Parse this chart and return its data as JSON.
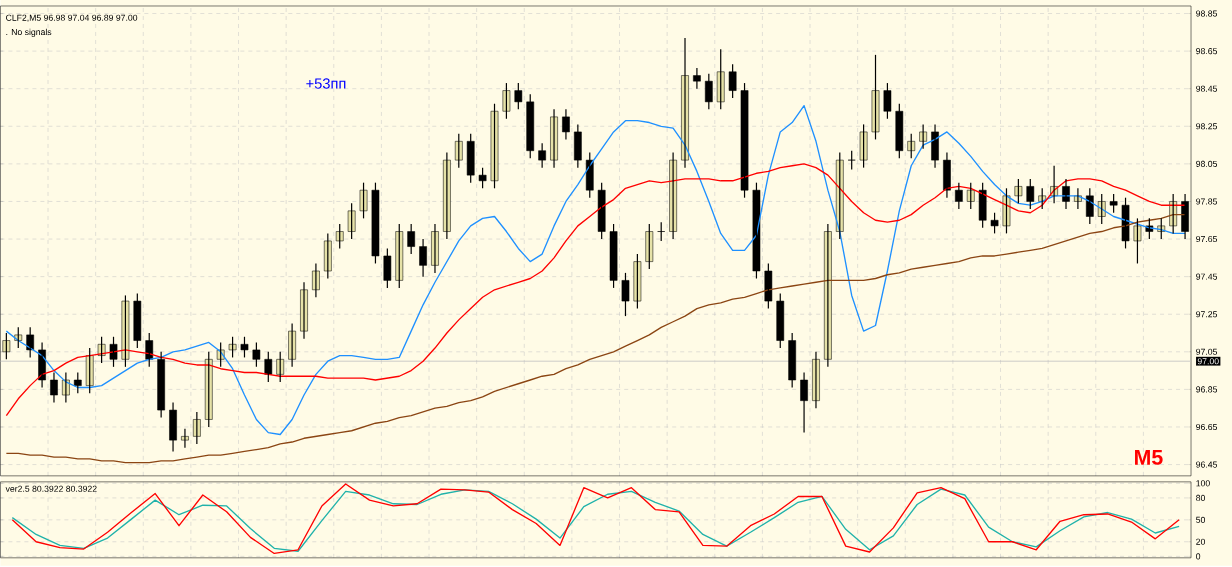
{
  "chart_data": [
    {
      "type": "candlestick",
      "annotations": [
        "CLF2,M5  96.98 97.04 96.89 97.00",
        ". No signals",
        "+53пп",
        "M5"
      ],
      "categories": [
        null,
        null,
        null,
        null,
        null,
        null,
        null,
        null,
        null,
        null,
        null,
        null,
        null,
        null,
        null,
        null,
        null,
        null,
        null,
        null,
        null,
        null,
        null,
        null,
        null,
        null,
        null,
        null,
        null,
        null,
        null,
        null,
        null,
        null,
        null,
        null,
        null,
        null,
        null,
        null,
        null,
        null,
        null,
        null,
        null,
        null,
        null,
        null,
        null,
        null,
        null,
        null,
        null,
        null,
        null,
        null,
        null,
        null,
        null,
        null,
        null,
        null,
        null,
        null,
        null,
        null,
        null,
        null,
        null,
        null,
        null,
        null,
        null,
        null,
        null,
        null,
        null,
        null,
        null,
        null,
        null,
        null,
        null,
        null,
        null,
        null,
        null,
        null,
        null,
        null,
        null,
        null,
        null,
        null,
        null,
        null,
        null,
        null,
        null,
        null
      ],
      "ohlc": [
        [
          97.05,
          97.15,
          97.01,
          97.11
        ],
        [
          97.11,
          97.18,
          97.07,
          97.14
        ],
        [
          97.14,
          97.18,
          97.02,
          97.06
        ],
        [
          97.06,
          97.1,
          96.86,
          96.9
        ],
        [
          96.9,
          96.94,
          96.78,
          96.82
        ],
        [
          96.82,
          96.94,
          96.78,
          96.9
        ],
        [
          96.9,
          96.94,
          96.83,
          96.87
        ],
        [
          96.87,
          97.07,
          96.83,
          97.03
        ],
        [
          97.03,
          97.13,
          96.99,
          97.09
        ],
        [
          97.09,
          97.13,
          96.97,
          97.01
        ],
        [
          97.01,
          97.35,
          96.97,
          97.32
        ],
        [
          97.32,
          97.36,
          97.07,
          97.11
        ],
        [
          97.11,
          97.15,
          96.97,
          97.01
        ],
        [
          97.01,
          97.05,
          96.7,
          96.74
        ],
        [
          96.74,
          96.78,
          96.52,
          96.58
        ],
        [
          96.58,
          96.64,
          96.54,
          96.6
        ],
        [
          96.6,
          96.73,
          96.56,
          96.69
        ],
        [
          96.69,
          97.05,
          96.65,
          97.01
        ],
        [
          97.01,
          97.1,
          96.97,
          97.06
        ],
        [
          97.06,
          97.13,
          97.02,
          97.09
        ],
        [
          97.09,
          97.13,
          97.02,
          97.06
        ],
        [
          97.06,
          97.1,
          96.97,
          97.01
        ],
        [
          97.01,
          97.05,
          96.89,
          96.93
        ],
        [
          96.93,
          97.05,
          96.89,
          97.01
        ],
        [
          97.01,
          97.2,
          96.97,
          97.16
        ],
        [
          97.16,
          97.42,
          97.12,
          97.38
        ],
        [
          97.38,
          97.52,
          97.34,
          97.48
        ],
        [
          97.48,
          97.68,
          97.44,
          97.64
        ],
        [
          97.64,
          97.73,
          97.6,
          97.69
        ],
        [
          97.69,
          97.84,
          97.65,
          97.8
        ],
        [
          97.8,
          97.95,
          97.76,
          97.91
        ],
        [
          97.91,
          97.95,
          97.52,
          97.56
        ],
        [
          97.56,
          97.6,
          97.39,
          97.43
        ],
        [
          97.43,
          97.73,
          97.39,
          97.69
        ],
        [
          97.69,
          97.73,
          97.57,
          97.61
        ],
        [
          97.61,
          97.65,
          97.45,
          97.51
        ],
        [
          97.51,
          97.73,
          97.47,
          97.69
        ],
        [
          97.69,
          98.11,
          97.65,
          98.07
        ],
        [
          98.07,
          98.21,
          98.03,
          98.17
        ],
        [
          98.17,
          98.21,
          97.95,
          97.99
        ],
        [
          97.99,
          98.03,
          97.92,
          97.96
        ],
        [
          97.96,
          98.37,
          97.92,
          98.33
        ],
        [
          98.33,
          98.48,
          98.29,
          98.44
        ],
        [
          98.44,
          98.48,
          98.34,
          98.38
        ],
        [
          98.38,
          98.42,
          98.08,
          98.12
        ],
        [
          98.12,
          98.16,
          98.03,
          98.07
        ],
        [
          98.07,
          98.34,
          98.03,
          98.3
        ],
        [
          98.3,
          98.34,
          98.18,
          98.22
        ],
        [
          98.22,
          98.26,
          98.03,
          98.07
        ],
        [
          98.07,
          98.11,
          97.87,
          97.91
        ],
        [
          97.91,
          97.95,
          97.65,
          97.69
        ],
        [
          97.69,
          97.73,
          97.39,
          97.43
        ],
        [
          97.43,
          97.47,
          97.24,
          97.32
        ],
        [
          97.32,
          97.57,
          97.28,
          97.53
        ],
        [
          97.53,
          97.73,
          97.49,
          97.69
        ],
        [
          97.69,
          97.74,
          97.64,
          97.69
        ],
        [
          97.69,
          98.11,
          97.65,
          98.07
        ],
        [
          98.07,
          98.72,
          98.03,
          98.52
        ],
        [
          98.52,
          98.56,
          98.45,
          98.49
        ],
        [
          98.49,
          98.53,
          98.34,
          98.38
        ],
        [
          98.38,
          98.66,
          98.34,
          98.54
        ],
        [
          98.54,
          98.58,
          98.4,
          98.44
        ],
        [
          98.44,
          98.48,
          97.87,
          97.91
        ],
        [
          97.91,
          97.95,
          97.44,
          97.48
        ],
        [
          97.48,
          97.52,
          97.28,
          97.32
        ],
        [
          97.32,
          97.36,
          97.07,
          97.11
        ],
        [
          97.11,
          97.15,
          96.86,
          96.9
        ],
        [
          96.9,
          96.94,
          96.62,
          96.79
        ],
        [
          96.79,
          97.05,
          96.75,
          97.01
        ],
        [
          97.01,
          97.73,
          96.97,
          97.69
        ],
        [
          97.69,
          98.11,
          97.65,
          98.07
        ],
        [
          98.07,
          98.12,
          98.02,
          98.07
        ],
        [
          98.07,
          98.26,
          98.03,
          98.22
        ],
        [
          98.22,
          98.63,
          98.18,
          98.44
        ],
        [
          98.44,
          98.48,
          98.29,
          98.33
        ],
        [
          98.33,
          98.37,
          98.08,
          98.12
        ],
        [
          98.12,
          98.21,
          98.08,
          98.17
        ],
        [
          98.17,
          98.26,
          98.13,
          98.22
        ],
        [
          98.22,
          98.26,
          98.03,
          98.07
        ],
        [
          98.07,
          98.11,
          97.87,
          97.91
        ],
        [
          97.91,
          97.95,
          97.81,
          97.85
        ],
        [
          97.85,
          97.95,
          97.81,
          97.91
        ],
        [
          97.91,
          97.95,
          97.71,
          97.75
        ],
        [
          97.75,
          97.79,
          97.68,
          97.72
        ],
        [
          97.72,
          97.92,
          97.68,
          97.88
        ],
        [
          97.88,
          97.97,
          97.84,
          97.93
        ],
        [
          97.93,
          97.97,
          97.81,
          97.85
        ],
        [
          97.85,
          97.92,
          97.81,
          97.88
        ],
        [
          97.88,
          98.04,
          97.84,
          97.93
        ],
        [
          97.93,
          97.97,
          97.81,
          97.85
        ],
        [
          97.85,
          97.92,
          97.81,
          97.88
        ],
        [
          97.88,
          97.92,
          97.73,
          97.77
        ],
        [
          97.77,
          97.89,
          97.73,
          97.85
        ],
        [
          97.85,
          97.89,
          97.79,
          97.83
        ],
        [
          97.83,
          97.87,
          97.6,
          97.64
        ],
        [
          97.64,
          97.76,
          97.52,
          97.72
        ],
        [
          97.72,
          97.76,
          97.65,
          97.69
        ],
        [
          97.69,
          97.76,
          97.65,
          97.72
        ],
        [
          97.72,
          97.89,
          97.68,
          97.85
        ],
        [
          97.85,
          97.89,
          97.65,
          97.69
        ]
      ],
      "series": [
        {
          "type": "line",
          "color": "#1e90ff",
          "values": [
            97.16,
            97.11,
            97.07,
            97.03,
            96.95,
            96.89,
            96.86,
            96.86,
            96.87,
            96.91,
            96.95,
            96.99,
            97.01,
            97.02,
            97.05,
            97.06,
            97.08,
            97.1,
            97.05,
            96.96,
            96.82,
            96.69,
            96.62,
            96.61,
            96.69,
            96.82,
            96.93,
            97.0,
            97.03,
            97.03,
            97.02,
            97.01,
            97.01,
            97.02,
            97.16,
            97.3,
            97.42,
            97.53,
            97.64,
            97.72,
            97.76,
            97.77,
            97.69,
            97.6,
            97.53,
            97.57,
            97.72,
            97.85,
            97.94,
            98.04,
            98.13,
            98.22,
            98.28,
            98.28,
            98.27,
            98.25,
            98.24,
            98.15,
            98.01,
            97.85,
            97.68,
            97.59,
            97.59,
            97.67,
            97.99,
            98.22,
            98.27,
            98.36,
            98.17,
            97.91,
            97.69,
            97.35,
            97.16,
            97.19,
            97.48,
            97.8,
            98.04,
            98.15,
            98.18,
            98.22,
            98.16,
            98.09,
            98.01,
            97.94,
            97.88,
            97.84,
            97.83,
            97.85,
            97.88,
            97.88,
            97.88,
            97.85,
            97.81,
            97.77,
            97.75,
            97.73,
            97.71,
            97.7,
            97.68,
            97.68
          ]
        },
        {
          "type": "line",
          "color": "#ff0000",
          "values": [
            96.71,
            96.8,
            96.87,
            96.93,
            96.95,
            96.99,
            97.02,
            97.03,
            97.04,
            97.05,
            97.06,
            97.05,
            97.04,
            97.02,
            97.01,
            96.99,
            96.98,
            96.98,
            96.96,
            96.95,
            96.94,
            96.94,
            96.93,
            96.92,
            96.92,
            96.92,
            96.92,
            96.91,
            96.91,
            96.91,
            96.91,
            96.9,
            96.91,
            96.92,
            96.95,
            97.0,
            97.07,
            97.15,
            97.22,
            97.28,
            97.34,
            97.38,
            97.4,
            97.42,
            97.44,
            97.48,
            97.55,
            97.64,
            97.72,
            97.77,
            97.82,
            97.86,
            97.92,
            97.94,
            97.96,
            97.95,
            97.96,
            97.97,
            97.97,
            97.97,
            97.96,
            97.96,
            97.98,
            98.0,
            98.01,
            98.03,
            98.04,
            98.05,
            98.03,
            97.99,
            97.92,
            97.85,
            97.79,
            97.75,
            97.74,
            97.75,
            97.78,
            97.83,
            97.87,
            97.92,
            97.93,
            97.92,
            97.89,
            97.86,
            97.83,
            97.8,
            97.79,
            97.83,
            97.91,
            97.96,
            97.97,
            97.97,
            97.96,
            97.93,
            97.91,
            97.88,
            97.85,
            97.83,
            97.83,
            97.83
          ]
        },
        {
          "type": "line",
          "color": "#8b4513",
          "values": [
            96.51,
            96.51,
            96.5,
            96.5,
            96.49,
            96.49,
            96.48,
            96.48,
            96.47,
            96.47,
            96.46,
            96.46,
            96.46,
            96.47,
            96.47,
            96.48,
            96.49,
            96.5,
            96.5,
            96.51,
            96.52,
            96.53,
            96.54,
            96.56,
            96.57,
            96.59,
            96.6,
            96.61,
            96.62,
            96.63,
            96.65,
            96.67,
            96.68,
            96.7,
            96.71,
            96.73,
            96.75,
            96.76,
            96.78,
            96.79,
            96.81,
            96.84,
            96.86,
            96.88,
            96.9,
            96.92,
            96.93,
            96.96,
            96.98,
            97.01,
            97.03,
            97.05,
            97.08,
            97.11,
            97.14,
            97.18,
            97.21,
            97.24,
            97.28,
            97.3,
            97.31,
            97.33,
            97.34,
            97.36,
            97.38,
            97.39,
            97.4,
            97.41,
            97.42,
            97.43,
            97.43,
            97.43,
            97.43,
            97.44,
            97.46,
            97.47,
            97.49,
            97.5,
            97.51,
            97.52,
            97.53,
            97.55,
            97.56,
            97.56,
            97.57,
            97.58,
            97.59,
            97.6,
            97.62,
            97.64,
            97.66,
            97.68,
            97.69,
            97.71,
            97.72,
            97.74,
            97.75,
            97.76,
            97.78,
            97.78
          ]
        }
      ],
      "ylim": [
        96.39,
        98.89
      ],
      "yticks": [
        96.45,
        96.65,
        96.85,
        97.05,
        97.25,
        97.45,
        97.65,
        97.85,
        98.05,
        98.25,
        98.45,
        98.65,
        98.85
      ],
      "ref_lines": [
        {
          "axis": "y",
          "value": 97.0,
          "label": "97.00",
          "color": "#c0c0c0"
        }
      ],
      "grid": true,
      "tick_labels": "y"
    },
    {
      "type": "line",
      "annotations": [
        "ver2.5 80.3922 80.3922"
      ],
      "categories": [
        null,
        null,
        null,
        null,
        null,
        null,
        null,
        null,
        null,
        null,
        null,
        null,
        null,
        null,
        null,
        null,
        null,
        null,
        null,
        null,
        null,
        null,
        null,
        null,
        null,
        null,
        null,
        null,
        null,
        null,
        null,
        null,
        null,
        null,
        null,
        null,
        null,
        null,
        null,
        null,
        null,
        null,
        null,
        null,
        null,
        null,
        null,
        null,
        null,
        null
      ],
      "series": [
        {
          "color": "#20b2aa",
          "values": [
            53,
            30,
            15,
            11,
            25,
            51,
            77,
            57,
            70,
            69,
            38,
            11,
            7,
            49,
            89,
            84,
            72,
            71,
            85,
            91,
            89,
            72,
            51,
            25,
            68,
            85,
            89,
            74,
            62,
            30,
            14,
            33,
            53,
            74,
            82,
            37,
            9,
            28,
            71,
            92,
            84,
            40,
            20,
            13,
            35,
            54,
            60,
            51,
            32,
            41
          ]
        },
        {
          "color": "#ff0000",
          "values": [
            50,
            20,
            12,
            10,
            33,
            60,
            86,
            42,
            84,
            61,
            26,
            4,
            9,
            69,
            99,
            77,
            69,
            72,
            92,
            91,
            88,
            64,
            45,
            15,
            94,
            80,
            94,
            64,
            61,
            15,
            14,
            42,
            58,
            82,
            82,
            14,
            6,
            39,
            87,
            94,
            79,
            20,
            20,
            9,
            48,
            57,
            58,
            47,
            24,
            50
          ]
        }
      ],
      "ylim": [
        -2,
        102
      ],
      "yticks": [
        0,
        20,
        50,
        80,
        100
      ],
      "grid": true,
      "tick_labels": "y"
    }
  ]
}
